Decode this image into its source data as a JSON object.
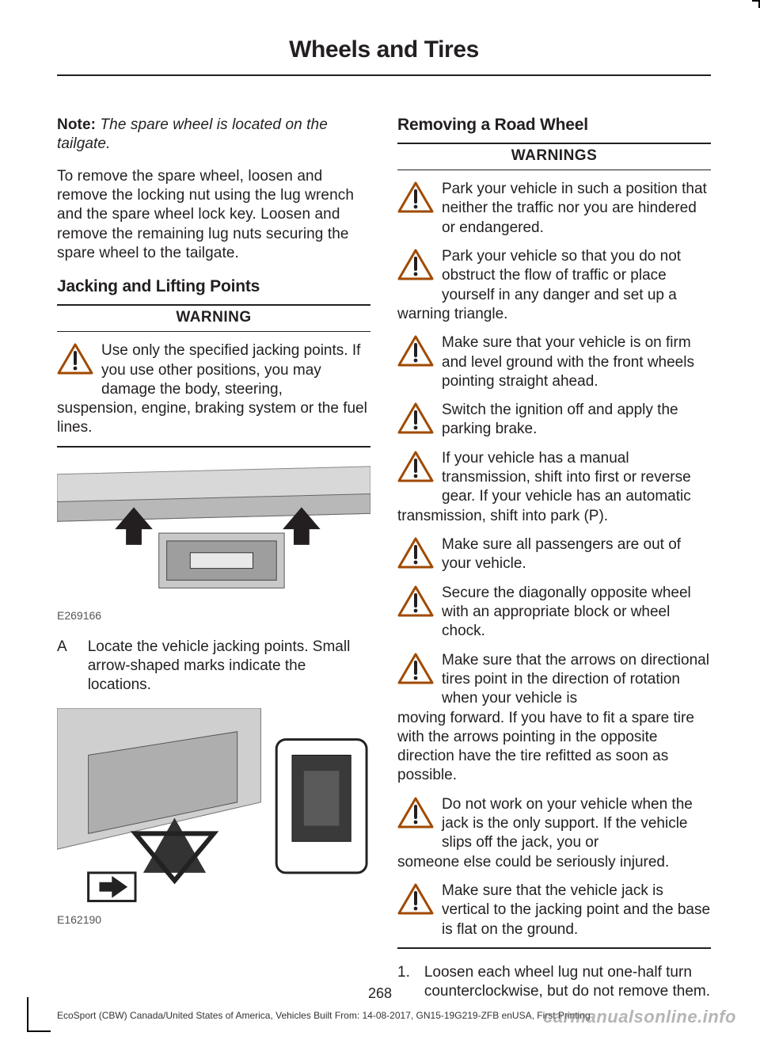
{
  "header": {
    "title": "Wheels and Tires"
  },
  "left": {
    "note": {
      "label": "Note:",
      "body": "The spare wheel is located on the tailgate."
    },
    "p1": "To remove the spare wheel, loosen and remove the locking nut using the lug wrench and the spare wheel lock key. Loosen and remove the remaining lug nuts securing the spare wheel to the tailgate.",
    "sub1": "Jacking and Lifting Points",
    "warn1": {
      "title": "WARNING",
      "item": "Use only the specified jacking points. If you use other positions, you may damage the body, steering,",
      "runon": "suspension, engine, braking system or the fuel lines."
    },
    "fig1": {
      "ref": "E269166"
    },
    "lettered": {
      "letter": "A",
      "text": "Locate the vehicle jacking points. Small arrow-shaped marks indicate the locations."
    },
    "fig2": {
      "ref": "E162190"
    }
  },
  "right": {
    "sub1": "Removing a Road Wheel",
    "warn": {
      "title": "WARNINGS",
      "items": [
        {
          "first": "Park your vehicle in such a position that neither the traffic nor you are hindered or endangered."
        },
        {
          "first": "Park your vehicle so that you do not obstruct the flow of traffic or place yourself in any danger and set up a",
          "runon": "warning triangle."
        },
        {
          "first": "Make sure that your vehicle is on firm and level ground with the front wheels pointing straight ahead."
        },
        {
          "first": "Switch the ignition off and apply the parking brake."
        },
        {
          "first": "If your vehicle has a manual transmission, shift into first or reverse gear. If your vehicle has an automatic",
          "runon": "transmission, shift into park (P)."
        },
        {
          "first": "Make sure all passengers are out of your vehicle."
        },
        {
          "first": "Secure the diagonally opposite wheel with an appropriate block or wheel chock."
        },
        {
          "first": "Make sure that the arrows on directional tires point in the direction of rotation when your vehicle is",
          "runon": "moving forward. If you have to fit a spare tire with the arrows pointing in the opposite direction have the tire refitted as soon as possible."
        },
        {
          "first": "Do not work on your vehicle when the jack is the only support. If the vehicle slips off the jack, you or",
          "runon": "someone else could be seriously injured."
        },
        {
          "first": "Make sure that the vehicle jack is vertical to the jacking point and the base is flat on the ground."
        }
      ]
    },
    "step1": {
      "n": "1.",
      "text": "Loosen each wheel lug nut one-half turn counterclockwise, but do not remove them."
    }
  },
  "footer": {
    "page": "268",
    "line": "EcoSport (CBW) Canada/United States of America, Vehicles Built From: 14-08-2017, GN15-19G219-ZFB enUSA, First Printing",
    "watermark": "carmanualsonline.info"
  },
  "icons": {
    "triangle": {
      "stroke": "#a04a00",
      "fill": "#ffffff"
    }
  }
}
